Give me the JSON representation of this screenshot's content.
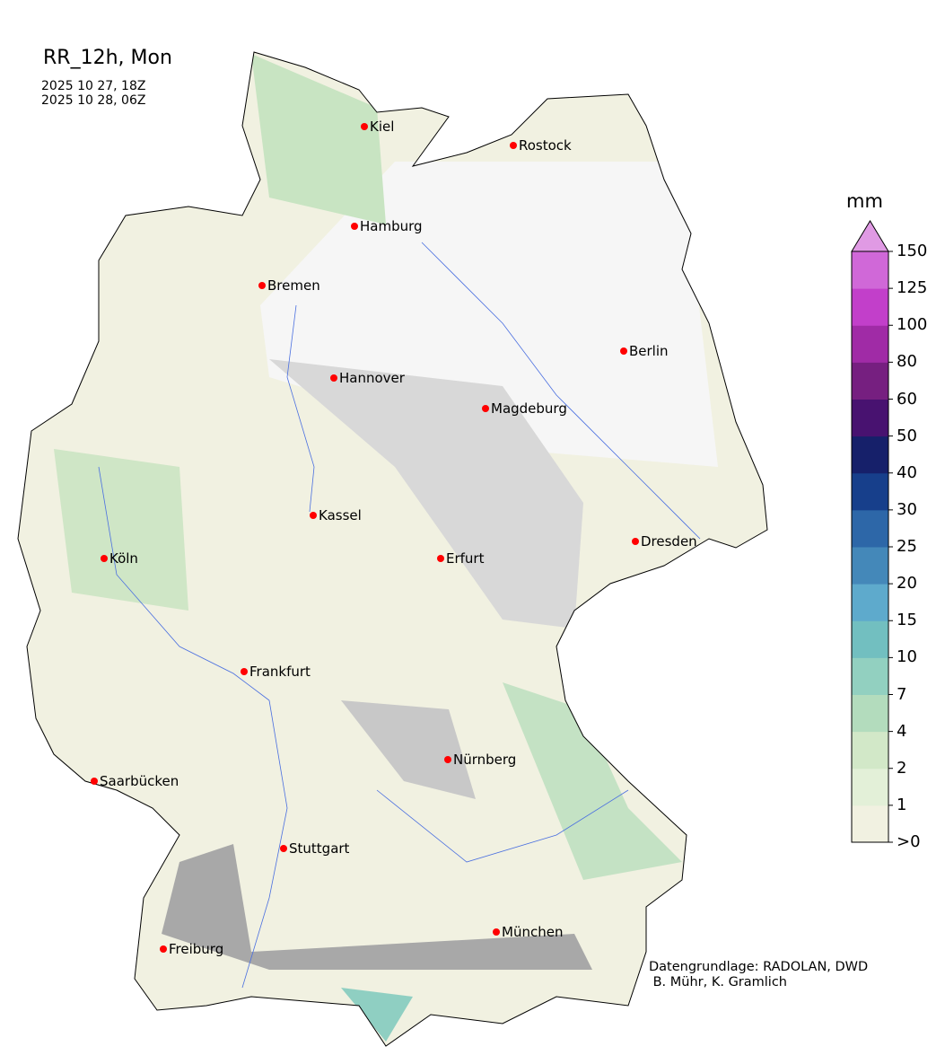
{
  "title": "RR_12h, Mon",
  "period_start": "2025 10 27, 18Z",
  "period_end": "2025 10 28, 06Z",
  "cities": [
    "Kiel",
    "Rostock",
    "Hamburg",
    "Bremen",
    "Berlin",
    "Hannover",
    "Magdeburg",
    "Kassel",
    "Köln",
    "Erfurt",
    "Dresden",
    "Frankfurt",
    "Nürnberg",
    "Saarbücken",
    "Stuttgart",
    "München",
    "Freiburg"
  ],
  "colorbar": {
    "unit": "mm",
    "tick_labels": [
      ">0",
      "1",
      "2",
      "4",
      "7",
      "10",
      "15",
      "20",
      "25",
      "30",
      "40",
      "50",
      "60",
      "80",
      "100",
      "125",
      "150"
    ],
    "colors": [
      "#f1f1e1",
      "#e3f0d8",
      "#d2e8c8",
      "#b3dcbd",
      "#92d0c0",
      "#72bfc0",
      "#5eaacc",
      "#4488b9",
      "#2d67a8",
      "#173f8b",
      "#16206a",
      "#481270",
      "#761f80",
      "#a02ba6",
      "#c23fca",
      "#d068d8"
    ],
    "extend_color": "#e09ae4"
  },
  "colors": {
    "city_marker": "#ff0000",
    "rivers": "#4a6fe0",
    "no_precip": "#f4f4f4",
    "dry_gray": "#b0b0b0"
  },
  "credit": {
    "line1": "Datengrundlage: RADOLAN, DWD",
    "line2": " B. Mühr, K. Gramlich"
  }
}
